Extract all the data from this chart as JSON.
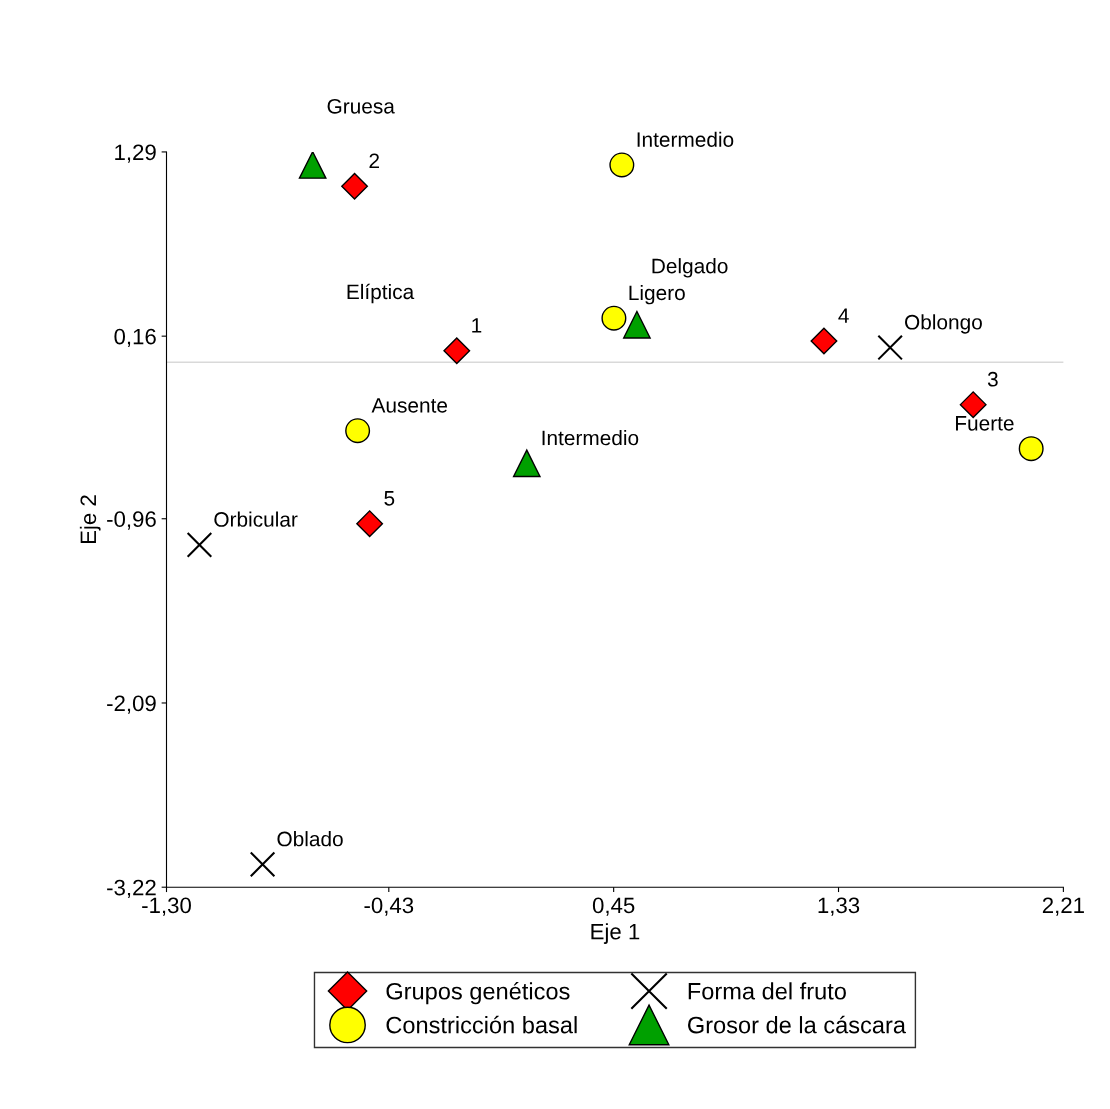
{
  "chart_data": {
    "type": "scatter",
    "xlabel": "Eje 1",
    "ylabel": "Eje 2",
    "xlim": [
      -1.3,
      2.21
    ],
    "ylim": [
      -3.22,
      1.29
    ],
    "xticks": [
      {
        "value": -1.3,
        "label": "-1,30"
      },
      {
        "value": -0.43,
        "label": "-0,43"
      },
      {
        "value": 0.45,
        "label": "0,45"
      },
      {
        "value": 1.33,
        "label": "1,33"
      },
      {
        "value": 2.21,
        "label": "2,21"
      }
    ],
    "yticks": [
      {
        "value": -3.22,
        "label": "-3,22"
      },
      {
        "value": -2.09,
        "label": "-2,09"
      },
      {
        "value": -0.96,
        "label": "-0,96"
      },
      {
        "value": 0.16,
        "label": "0,16"
      },
      {
        "value": 1.29,
        "label": "1,29"
      }
    ],
    "grid": false,
    "legend": "bottom",
    "ref_lines": [
      {
        "axis": "y",
        "value": 0,
        "label": null,
        "color": "#d9d9d9"
      }
    ],
    "series": [
      {
        "name": "Grupos genéticos",
        "color": "#ff0000",
        "marker": "diamond",
        "x": [
          -0.564,
          -0.164,
          -0.505,
          1.273,
          1.857
        ],
        "values": [
          1.08,
          0.07,
          -0.99,
          0.13,
          -0.26
        ]
      },
      {
        "name": "Constricción basal",
        "color": "#ffff00",
        "marker": "circle",
        "x": [
          0.482,
          0.451,
          -0.552,
          2.084
        ],
        "values": [
          1.21,
          0.27,
          -0.42,
          -0.53
        ]
      },
      {
        "name": "Forma del fruto",
        "color": "#000000",
        "marker": "cross",
        "x": [
          1.532,
          -1.171,
          -0.924
        ],
        "values": [
          0.09,
          -1.12,
          -3.08
        ]
      },
      {
        "name": "Grosor de la cáscara",
        "color": "#00a000",
        "marker": "triangle",
        "x": [
          -0.728,
          0.541,
          0.11
        ],
        "values": [
          1.21,
          0.23,
          -0.62
        ]
      }
    ],
    "annotations": [
      {
        "text": "2",
        "x": -0.564,
        "y": 1.08
      },
      {
        "text": "1",
        "x": -0.164,
        "y": 0.07
      },
      {
        "text": "5",
        "x": -0.505,
        "y": -0.99
      },
      {
        "text": "4",
        "x": 1.273,
        "y": 0.13
      },
      {
        "text": "3",
        "x": 1.857,
        "y": -0.26
      },
      {
        "text": "Intermedio",
        "x": 0.482,
        "y": 1.21
      },
      {
        "text": "Ligero",
        "x": 0.451,
        "y": 0.27
      },
      {
        "text": "Ausente",
        "x": -0.552,
        "y": -0.42
      },
      {
        "text": "Fuerte",
        "x": 2.084,
        "y": -0.53
      },
      {
        "text": "Oblongo",
        "x": 1.532,
        "y": 0.09
      },
      {
        "text": "Orbicular",
        "x": -1.171,
        "y": -1.12
      },
      {
        "text": "Oblado",
        "x": -0.924,
        "y": -3.08
      },
      "Elíptica",
      {
        "text": "Gruesa",
        "x": -0.728,
        "y": 1.21
      },
      {
        "text": "Delgado",
        "x": 0.541,
        "y": 0.23
      },
      {
        "text": "Intermedio",
        "x": 0.11,
        "y": -0.62
      }
    ]
  }
}
